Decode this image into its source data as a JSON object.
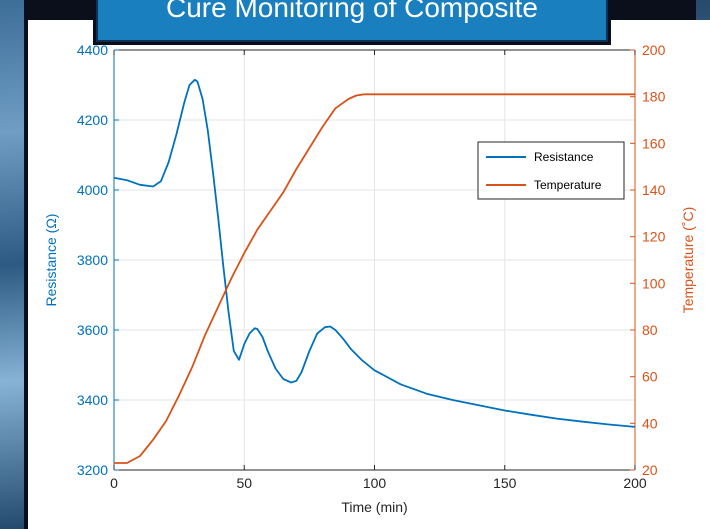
{
  "title": "Cure Monitoring of Composite",
  "colors": {
    "axis": "#262626",
    "resistance": "#0072BD",
    "temperature": "#D95319",
    "grid": "#e6e6e6",
    "banner": "#1a7fbf"
  },
  "chart_data": {
    "type": "line",
    "xlabel": "Time (min)",
    "ylabel_left": "Resistance (Ω)",
    "ylabel_right": "Temperature (˚C)",
    "xlim": [
      0,
      200
    ],
    "ylim_left": [
      3200,
      4400
    ],
    "ylim_right": [
      20,
      200
    ],
    "x_ticks": [
      0,
      50,
      100,
      150,
      200
    ],
    "y_left_ticks": [
      3200,
      3400,
      3600,
      3800,
      4000,
      4200,
      4400
    ],
    "y_right_ticks": [
      20,
      40,
      60,
      80,
      100,
      120,
      140,
      160,
      180,
      200
    ],
    "grid": true,
    "legend_position": "top-right",
    "series": [
      {
        "name": "Resistance",
        "axis": "left",
        "x": [
          0,
          5,
          10,
          15,
          18,
          21,
          24,
          27,
          29,
          31,
          32,
          34,
          36,
          38,
          40,
          42,
          44,
          46,
          48,
          50,
          52,
          54,
          55,
          57,
          59,
          62,
          65,
          68,
          70,
          72,
          75,
          78,
          81,
          83,
          85,
          88,
          91,
          95,
          100,
          110,
          120,
          130,
          140,
          150,
          160,
          170,
          180,
          190,
          200
        ],
        "y": [
          4035,
          4028,
          4015,
          4010,
          4025,
          4080,
          4160,
          4250,
          4300,
          4315,
          4310,
          4260,
          4170,
          4050,
          3920,
          3780,
          3650,
          3540,
          3515,
          3560,
          3590,
          3605,
          3603,
          3580,
          3540,
          3490,
          3460,
          3450,
          3455,
          3480,
          3540,
          3590,
          3608,
          3610,
          3600,
          3575,
          3545,
          3515,
          3485,
          3445,
          3418,
          3400,
          3385,
          3370,
          3358,
          3347,
          3338,
          3330,
          3323
        ]
      },
      {
        "name": "Temperature",
        "axis": "right",
        "x": [
          0,
          5,
          10,
          15,
          20,
          25,
          30,
          35,
          40,
          45,
          50,
          55,
          60,
          65,
          70,
          75,
          80,
          85,
          90,
          93,
          96,
          100,
          110,
          130,
          150,
          170,
          200
        ],
        "y": [
          23,
          23,
          26,
          33,
          41,
          52,
          64,
          78,
          90,
          102,
          113,
          123,
          131,
          139,
          149,
          158,
          167,
          175,
          179,
          180.5,
          181,
          181,
          181,
          181,
          181,
          181,
          181
        ]
      }
    ]
  }
}
